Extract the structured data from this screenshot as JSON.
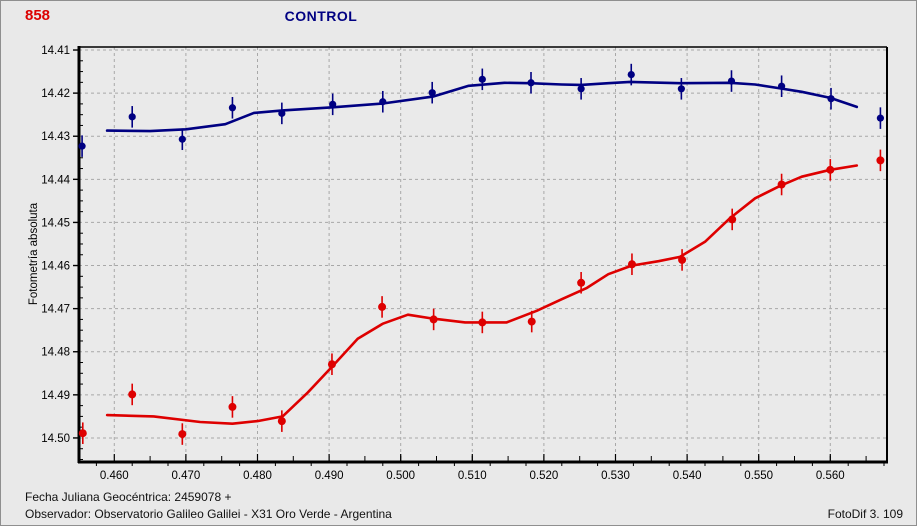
{
  "header": {
    "object_number": "858",
    "object_number_color": "#dd0000",
    "title": "CONTROL",
    "title_color": "#000082"
  },
  "footer": {
    "julian_date_line": "Fecha Juliana Geocéntrica: 2459078 +",
    "observer_line": "Observador: Observatorio Galileo Galilei - X31 Oro Verde - Argentina",
    "app_version": "FotoDif 3. 109"
  },
  "chart_data": {
    "type": "scatter",
    "title": "CONTROL",
    "object": "858",
    "xlabel": "",
    "ylabel": "Fotometría absoluta",
    "x_axis_note": "fraction of Julian Date 2459078 +",
    "y_inverted": false,
    "grid": true,
    "grid_color": "#a8a8a8",
    "frame_color": "#000000",
    "xlim": [
      0.45507,
      0.56792
    ],
    "ylim": [
      14.4093,
      14.50558
    ],
    "x_ticks": [
      0.46,
      0.47,
      0.48,
      0.49,
      0.5,
      0.51,
      0.52,
      0.53,
      0.54,
      0.55,
      0.56
    ],
    "x_tick_labels": [
      "0.460",
      "0.470",
      "0.480",
      "0.490",
      "0.500",
      "0.510",
      "0.520",
      "0.530",
      "0.540",
      "0.550",
      "0.560"
    ],
    "y_ticks": [
      14.41,
      14.42,
      14.43,
      14.44,
      14.45,
      14.46,
      14.47,
      14.48,
      14.49,
      14.5
    ],
    "y_tick_labels": [
      "14.41",
      "14.42",
      "14.43",
      "14.44",
      "14.45",
      "14.46",
      "14.47",
      "14.48",
      "14.49",
      "14.50"
    ],
    "x_minor_step": 0.005,
    "x_subminor_step": 0.0025,
    "y_minor_step": 0.0025,
    "error_bar": 0.0025,
    "series": [
      {
        "name": "control",
        "color": "#000082",
        "marker_radius": 3.6,
        "points": [
          [
            0.4555,
            14.4323
          ],
          [
            0.4625,
            14.4255
          ],
          [
            0.4695,
            14.4307
          ],
          [
            0.4765,
            14.4234
          ],
          [
            0.4834,
            14.4247
          ],
          [
            0.4905,
            14.4226
          ],
          [
            0.4975,
            14.422
          ],
          [
            0.5044,
            14.4199
          ],
          [
            0.5114,
            14.4168
          ],
          [
            0.5182,
            14.4176
          ],
          [
            0.5252,
            14.419
          ],
          [
            0.5322,
            14.4157
          ],
          [
            0.5392,
            14.419
          ],
          [
            0.5462,
            14.4172
          ],
          [
            0.5532,
            14.4184
          ],
          [
            0.5601,
            14.4213
          ],
          [
            0.567,
            14.4258
          ]
        ],
        "fit": [
          [
            0.459,
            14.4287
          ],
          [
            0.465,
            14.4288
          ],
          [
            0.47,
            14.4284
          ],
          [
            0.4755,
            14.4272
          ],
          [
            0.4795,
            14.4246
          ],
          [
            0.4835,
            14.424
          ],
          [
            0.4905,
            14.4233
          ],
          [
            0.4975,
            14.4224
          ],
          [
            0.5045,
            14.4208
          ],
          [
            0.5095,
            14.4183
          ],
          [
            0.5145,
            14.4176
          ],
          [
            0.518,
            14.4177
          ],
          [
            0.5225,
            14.418
          ],
          [
            0.5252,
            14.4181
          ],
          [
            0.529,
            14.4177
          ],
          [
            0.532,
            14.4174
          ],
          [
            0.539,
            14.4177
          ],
          [
            0.546,
            14.4176
          ],
          [
            0.5495,
            14.418
          ],
          [
            0.553,
            14.4189
          ],
          [
            0.556,
            14.4197
          ],
          [
            0.56,
            14.4211
          ],
          [
            0.5637,
            14.4232
          ]
        ]
      },
      {
        "name": "858",
        "color": "#de0000",
        "marker_radius": 4.0,
        "points": [
          [
            0.4556,
            14.4989
          ],
          [
            0.4625,
            14.4899
          ],
          [
            0.4695,
            14.4991
          ],
          [
            0.4765,
            14.4928
          ],
          [
            0.4834,
            14.4961
          ],
          [
            0.4904,
            14.4829
          ],
          [
            0.4974,
            14.4696
          ],
          [
            0.5046,
            14.4725
          ],
          [
            0.5114,
            14.4732
          ],
          [
            0.5183,
            14.473
          ],
          [
            0.5252,
            14.464
          ],
          [
            0.5323,
            14.4597
          ],
          [
            0.5393,
            14.4587
          ],
          [
            0.5463,
            14.4493
          ],
          [
            0.5532,
            14.4412
          ],
          [
            0.56,
            14.4378
          ],
          [
            0.567,
            14.4356
          ]
        ],
        "fit": [
          [
            0.459,
            14.4947
          ],
          [
            0.4655,
            14.495
          ],
          [
            0.472,
            14.4963
          ],
          [
            0.4765,
            14.4967
          ],
          [
            0.48,
            14.4961
          ],
          [
            0.4835,
            14.495
          ],
          [
            0.487,
            14.4895
          ],
          [
            0.4905,
            14.4833
          ],
          [
            0.494,
            14.477
          ],
          [
            0.4975,
            14.4735
          ],
          [
            0.501,
            14.4714
          ],
          [
            0.5045,
            14.4723
          ],
          [
            0.509,
            14.4732
          ],
          [
            0.5148,
            14.4732
          ],
          [
            0.519,
            14.4705
          ],
          [
            0.5225,
            14.4678
          ],
          [
            0.526,
            14.4652
          ],
          [
            0.529,
            14.462
          ],
          [
            0.5323,
            14.46
          ],
          [
            0.536,
            14.459
          ],
          [
            0.539,
            14.458
          ],
          [
            0.5425,
            14.4545
          ],
          [
            0.546,
            14.449
          ],
          [
            0.5495,
            14.4444
          ],
          [
            0.553,
            14.4415
          ],
          [
            0.556,
            14.4394
          ],
          [
            0.56,
            14.4378
          ],
          [
            0.5637,
            14.4368
          ]
        ]
      }
    ]
  }
}
